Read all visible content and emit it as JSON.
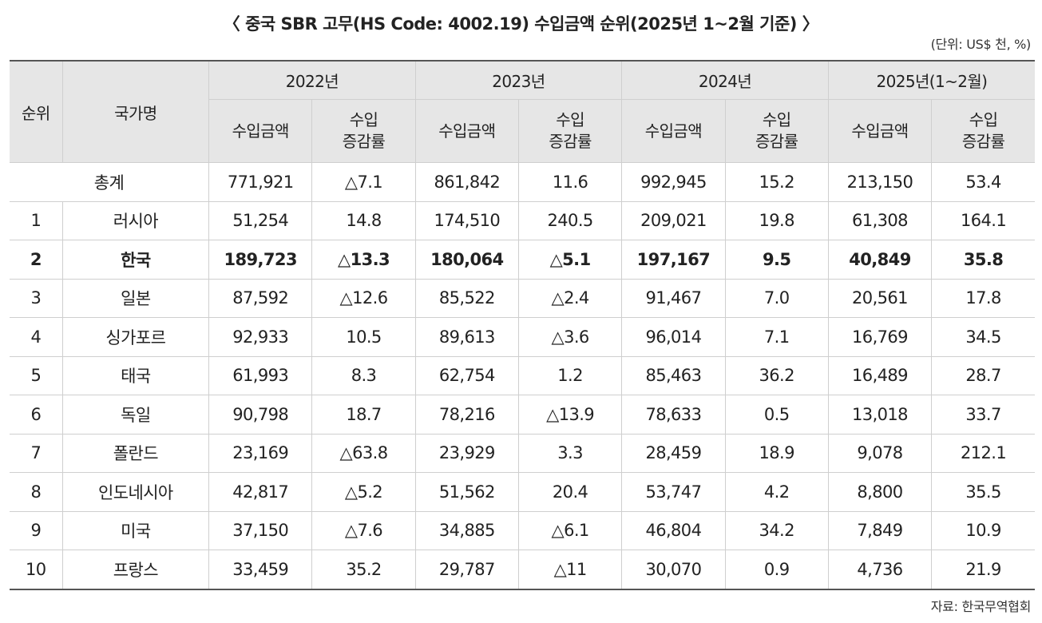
{
  "title": "〈 중국 SBR 고무(HS Code: 4002.19) 수입금액 순위(2025년 1~2월 기준) 〉",
  "unit": "(단위: US$ 천, %)",
  "source": "자료: 한국무역협회",
  "header": {
    "rank": "순위",
    "country": "국가명",
    "years": [
      "2022년",
      "2023년",
      "2024년",
      "2025년(1~2월)"
    ],
    "amount": "수입금액",
    "rate_line1": "수입",
    "rate_line2": "증감률"
  },
  "total": {
    "label": "총계",
    "values": [
      "771,921",
      "△7.1",
      "861,842",
      "11.6",
      "992,945",
      "15.2",
      "213,150",
      "53.4"
    ]
  },
  "rows": [
    {
      "rank": "1",
      "country": "러시아",
      "values": [
        "51,254",
        "14.8",
        "174,510",
        "240.5",
        "209,021",
        "19.8",
        "61,308",
        "164.1"
      ]
    },
    {
      "rank": "2",
      "country": "한국",
      "values": [
        "189,723",
        "△13.3",
        "180,064",
        "△5.1",
        "197,167",
        "9.5",
        "40,849",
        "35.8"
      ]
    },
    {
      "rank": "3",
      "country": "일본",
      "values": [
        "87,592",
        "△12.6",
        "85,522",
        "△2.4",
        "91,467",
        "7.0",
        "20,561",
        "17.8"
      ]
    },
    {
      "rank": "4",
      "country": "싱가포르",
      "values": [
        "92,933",
        "10.5",
        "89,613",
        "△3.6",
        "96,014",
        "7.1",
        "16,769",
        "34.5"
      ]
    },
    {
      "rank": "5",
      "country": "태국",
      "values": [
        "61,993",
        "8.3",
        "62,754",
        "1.2",
        "85,463",
        "36.2",
        "16,489",
        "28.7"
      ]
    },
    {
      "rank": "6",
      "country": "독일",
      "values": [
        "90,798",
        "18.7",
        "78,216",
        "△13.9",
        "78,633",
        "0.5",
        "13,018",
        "33.7"
      ]
    },
    {
      "rank": "7",
      "country": "폴란드",
      "values": [
        "23,169",
        "△63.8",
        "23,929",
        "3.3",
        "28,459",
        "18.9",
        "9,078",
        "212.1"
      ]
    },
    {
      "rank": "8",
      "country": "인도네시아",
      "values": [
        "42,817",
        "△5.2",
        "51,562",
        "20.4",
        "53,747",
        "4.2",
        "8,800",
        "35.5"
      ]
    },
    {
      "rank": "9",
      "country": "미국",
      "values": [
        "37,150",
        "△7.6",
        "34,885",
        "△6.1",
        "46,804",
        "34.2",
        "7,849",
        "10.9"
      ]
    },
    {
      "rank": "10",
      "country": "프랑스",
      "values": [
        "33,459",
        "35.2",
        "29,787",
        "△11",
        "30,070",
        "0.9",
        "4,736",
        "21.9"
      ]
    }
  ]
}
